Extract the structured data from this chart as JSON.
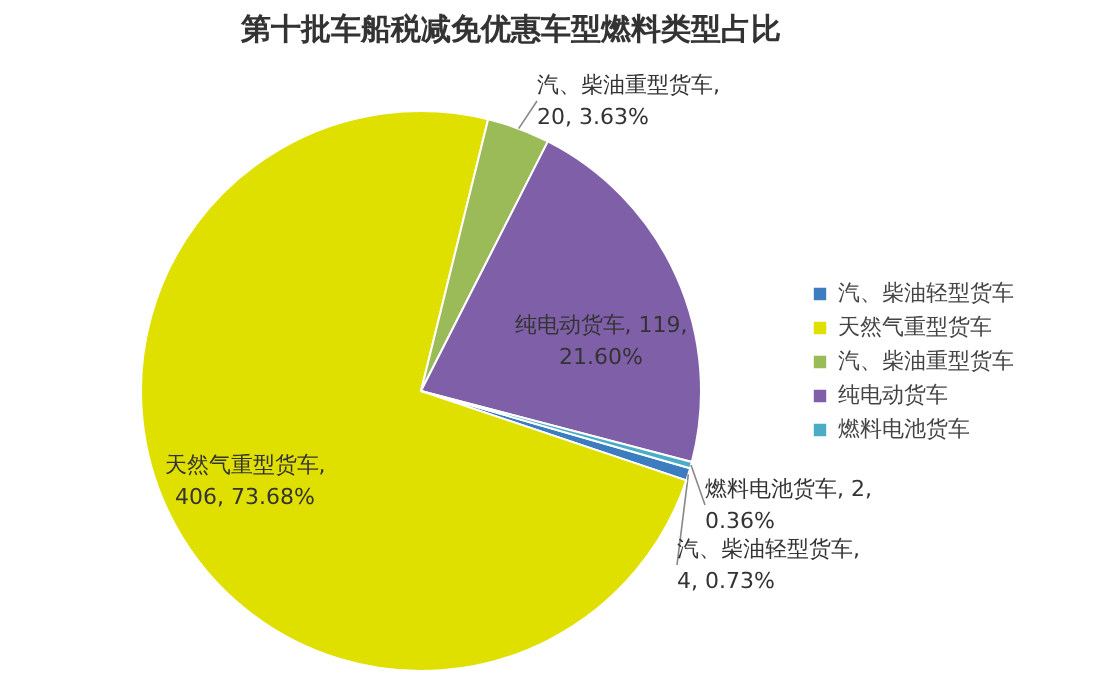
{
  "chart_data": {
    "type": "pie",
    "title": "第十批车船税减免优惠车型燃料类型占比",
    "categories": [
      "汽、柴油轻型货车",
      "天然气重型货车",
      "汽、柴油重型货车",
      "纯电动货车",
      "燃料电池货车"
    ],
    "values": [
      4,
      406,
      20,
      119,
      2
    ],
    "value_labels": [
      "汽、柴油轻型货车, 4, 0.73%",
      "天然气重型货车, 406, 73.68%",
      "汽、柴油重型货车, 20, 3.63%",
      "纯电动货车, 119, 21.60%",
      "燃料电池货车, 2, 0.36%"
    ],
    "colors": [
      "#3c7dc0",
      "#e0e000",
      "#9bbb59",
      "#7f60a8",
      "#4bacc6"
    ],
    "legend": "right"
  }
}
